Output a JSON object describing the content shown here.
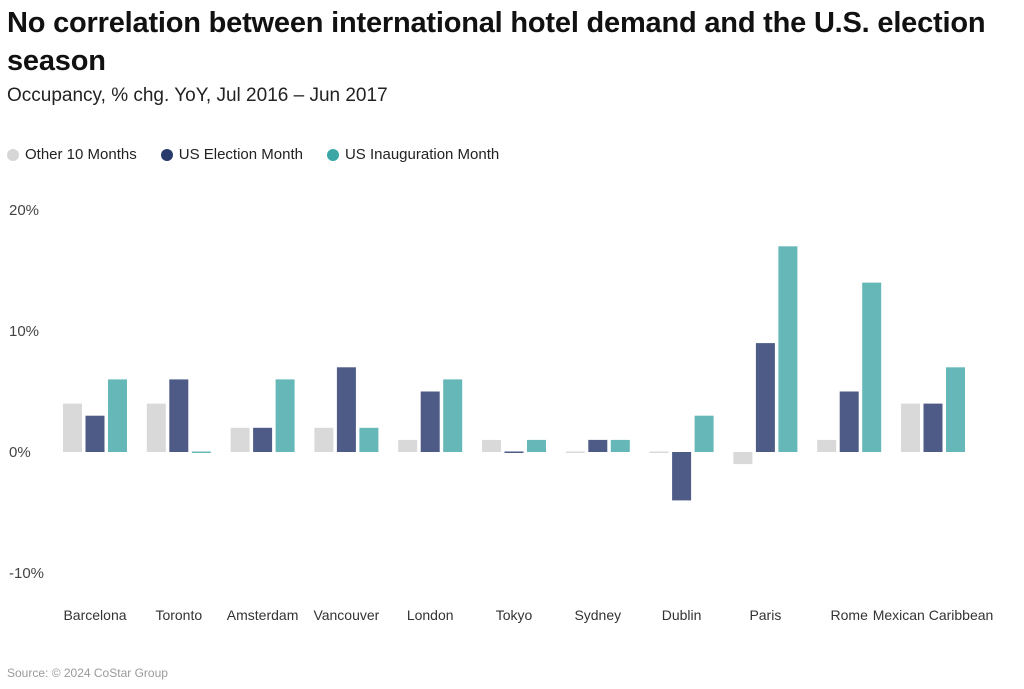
{
  "source": "Source: © 2024 CoStar Group",
  "chart_data": {
    "type": "bar",
    "title": "No correlation between international hotel demand and the U.S. election season",
    "subtitle": "Occupancy, % chg. YoY, Jul 2016 – Jun 2017",
    "xlabel": "",
    "ylabel": "",
    "ylim": [
      -10,
      20
    ],
    "yticks": [
      20,
      10,
      0,
      -10
    ],
    "ytick_labels": [
      "20%",
      "10%",
      "0%",
      "-10%"
    ],
    "grid": false,
    "legend_position": "top-left",
    "categories": [
      "Barcelona",
      "Toronto",
      "Amsterdam",
      "Vancouver",
      "London",
      "Tokyo",
      "Sydney",
      "Dublin",
      "Paris",
      "Rome",
      "Mexican Caribbean"
    ],
    "series": [
      {
        "name": "Other 10 Months",
        "color": "#d9d9d9",
        "values": [
          4,
          4,
          2,
          2,
          1,
          1,
          0,
          0,
          -1,
          1,
          4
        ]
      },
      {
        "name": "US Election Month",
        "color": "#4d5b86",
        "values": [
          3,
          6,
          2,
          7,
          5,
          0,
          1,
          -4,
          9,
          5,
          4
        ]
      },
      {
        "name": "US Inauguration Month",
        "color": "#66b8b8",
        "values": [
          6,
          0,
          6,
          2,
          6,
          1,
          1,
          3,
          17,
          14,
          7
        ]
      }
    ],
    "legend_dot_colors": [
      "#d6d6d6",
      "#283a6b",
      "#3aa6a6"
    ]
  }
}
